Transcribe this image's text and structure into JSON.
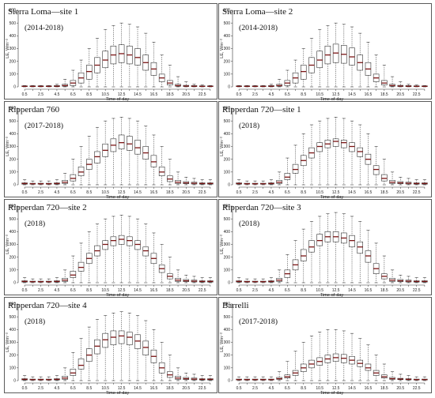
{
  "chart_data": [
    {
      "type": "boxplot",
      "title": "Sierra Loma—site 1",
      "subtitle": "(2014-2018)",
      "xlabel": "Time-of-day",
      "ylabel": "LE, Wm⁻²",
      "ylim": [
        0,
        600
      ],
      "y_ticks": [
        "0",
        "100",
        "200",
        "300",
        "400",
        "500",
        "600"
      ],
      "x_tick_labels": [
        "0.5",
        "2.5",
        "4.5",
        "6.5",
        "8.5",
        "10.5",
        "12.5",
        "14.5",
        "16.5",
        "18.5",
        "20.5",
        "22.5"
      ],
      "x": [
        0.5,
        1.5,
        2.5,
        3.5,
        4.5,
        5.5,
        6.5,
        7.5,
        8.5,
        9.5,
        10.5,
        11.5,
        12.5,
        13.5,
        14.5,
        15.5,
        16.5,
        17.5,
        18.5,
        19.5,
        20.5,
        21.5,
        22.5,
        23.5
      ],
      "min": [
        0,
        0,
        0,
        0,
        0,
        0,
        0,
        0,
        0,
        0,
        0,
        0,
        0,
        0,
        0,
        0,
        0,
        0,
        0,
        0,
        0,
        0,
        0,
        0
      ],
      "q1": [
        2,
        2,
        2,
        2,
        2,
        5,
        10,
        30,
        60,
        110,
        150,
        180,
        190,
        180,
        170,
        130,
        90,
        40,
        15,
        5,
        3,
        2,
        2,
        2
      ],
      "median": [
        4,
        4,
        4,
        4,
        5,
        10,
        30,
        70,
        120,
        170,
        210,
        250,
        260,
        250,
        230,
        190,
        140,
        70,
        30,
        10,
        6,
        5,
        4,
        4
      ],
      "q3": [
        8,
        8,
        8,
        8,
        10,
        20,
        50,
        110,
        170,
        230,
        280,
        320,
        330,
        320,
        300,
        250,
        190,
        100,
        50,
        20,
        12,
        10,
        8,
        8
      ],
      "max": [
        10,
        10,
        10,
        10,
        20,
        60,
        130,
        210,
        300,
        380,
        450,
        480,
        500,
        490,
        470,
        420,
        350,
        250,
        170,
        80,
        40,
        20,
        15,
        10
      ]
    },
    {
      "type": "boxplot",
      "title": "Sierra Loma—site 2",
      "subtitle": "(2014-2018)",
      "xlabel": "Time-of-day",
      "ylabel": "LE, Wm⁻²",
      "ylim": [
        0,
        600
      ],
      "y_ticks": [
        "0",
        "100",
        "200",
        "300",
        "400",
        "500",
        "600"
      ],
      "x_tick_labels": [
        "0.5",
        "2.5",
        "4.5",
        "6.5",
        "8.5",
        "10.5",
        "12.5",
        "14.5",
        "16.5",
        "18.5",
        "20.5",
        "22.5"
      ],
      "x": [
        0.5,
        1.5,
        2.5,
        3.5,
        4.5,
        5.5,
        6.5,
        7.5,
        8.5,
        9.5,
        10.5,
        11.5,
        12.5,
        13.5,
        14.5,
        15.5,
        16.5,
        17.5,
        18.5,
        19.5,
        20.5,
        21.5,
        22.5,
        23.5
      ],
      "min": [
        0,
        0,
        0,
        0,
        0,
        0,
        0,
        0,
        0,
        0,
        0,
        0,
        0,
        0,
        0,
        0,
        0,
        0,
        0,
        0,
        0,
        0,
        0,
        0
      ],
      "q1": [
        2,
        2,
        2,
        2,
        2,
        5,
        10,
        30,
        60,
        110,
        150,
        180,
        190,
        185,
        170,
        130,
        90,
        40,
        15,
        5,
        3,
        2,
        2,
        2
      ],
      "median": [
        4,
        4,
        4,
        4,
        5,
        10,
        30,
        70,
        120,
        170,
        210,
        250,
        265,
        255,
        235,
        190,
        140,
        70,
        30,
        10,
        6,
        5,
        4,
        4
      ],
      "q3": [
        8,
        8,
        8,
        8,
        10,
        20,
        50,
        110,
        170,
        230,
        280,
        320,
        335,
        325,
        305,
        250,
        190,
        100,
        50,
        20,
        12,
        10,
        8,
        8
      ],
      "max": [
        10,
        10,
        10,
        10,
        20,
        60,
        130,
        210,
        300,
        380,
        450,
        480,
        500,
        490,
        470,
        420,
        350,
        250,
        170,
        80,
        40,
        20,
        15,
        10
      ]
    },
    {
      "type": "boxplot",
      "title": "Ripperdan 760",
      "subtitle": "(2017-2018)",
      "xlabel": "Time-of-day",
      "ylabel": "LE, Wm⁻²",
      "ylim": [
        0,
        600
      ],
      "y_ticks": [
        "0",
        "100",
        "200",
        "300",
        "400",
        "500",
        "600"
      ],
      "x_tick_labels": [
        "0.5",
        "2.5",
        "4.5",
        "6.5",
        "8.5",
        "10.5",
        "12.5",
        "14.5",
        "16.5",
        "18.5",
        "20.5",
        "22.5"
      ],
      "x": [
        0.5,
        1.5,
        2.5,
        3.5,
        4.5,
        5.5,
        6.5,
        7.5,
        8.5,
        9.5,
        10.5,
        11.5,
        12.5,
        13.5,
        14.5,
        15.5,
        16.5,
        17.5,
        18.5,
        19.5,
        20.5,
        21.5,
        22.5,
        23.5
      ],
      "min": [
        0,
        0,
        0,
        0,
        0,
        0,
        0,
        0,
        0,
        0,
        0,
        0,
        0,
        0,
        0,
        0,
        0,
        0,
        0,
        0,
        0,
        0,
        0,
        0
      ],
      "q1": [
        5,
        5,
        5,
        5,
        5,
        10,
        30,
        70,
        120,
        170,
        220,
        260,
        280,
        270,
        240,
        200,
        140,
        70,
        25,
        10,
        8,
        6,
        5,
        5
      ],
      "median": [
        10,
        8,
        8,
        8,
        10,
        20,
        50,
        100,
        160,
        220,
        270,
        310,
        330,
        320,
        290,
        250,
        180,
        100,
        45,
        20,
        15,
        12,
        10,
        10
      ],
      "q3": [
        15,
        12,
        12,
        12,
        15,
        35,
        80,
        140,
        200,
        260,
        320,
        360,
        390,
        380,
        350,
        300,
        230,
        140,
        70,
        35,
        25,
        20,
        15,
        15
      ],
      "max": [
        40,
        30,
        30,
        30,
        40,
        90,
        200,
        300,
        380,
        450,
        500,
        520,
        530,
        520,
        500,
        460,
        390,
        300,
        200,
        100,
        60,
        50,
        40,
        40
      ]
    },
    {
      "type": "boxplot",
      "title": "Ripperdan 720—site 1",
      "subtitle": "(2018)",
      "xlabel": "Time-of-day",
      "ylabel": "LE, Wm⁻²",
      "ylim": [
        0,
        600
      ],
      "y_ticks": [
        "0",
        "100",
        "200",
        "300",
        "400",
        "500",
        "600"
      ],
      "x_tick_labels": [
        "0.5",
        "2.5",
        "4.5",
        "6.5",
        "8.5",
        "10.5",
        "12.5",
        "14.5",
        "16.5",
        "18.5",
        "20.5",
        "22.5"
      ],
      "x": [
        0.5,
        1.5,
        2.5,
        3.5,
        4.5,
        5.5,
        6.5,
        7.5,
        8.5,
        9.5,
        10.5,
        11.5,
        12.5,
        13.5,
        14.5,
        15.5,
        16.5,
        17.5,
        18.5,
        19.5,
        20.5,
        21.5,
        22.5,
        23.5
      ],
      "min": [
        0,
        0,
        0,
        0,
        0,
        0,
        0,
        0,
        0,
        0,
        0,
        0,
        0,
        0,
        0,
        0,
        0,
        0,
        0,
        0,
        0,
        0,
        0,
        0
      ],
      "q1": [
        5,
        5,
        5,
        5,
        5,
        10,
        40,
        90,
        150,
        210,
        260,
        290,
        300,
        290,
        260,
        220,
        160,
        80,
        30,
        10,
        8,
        6,
        5,
        5
      ],
      "median": [
        10,
        8,
        8,
        8,
        10,
        20,
        60,
        120,
        190,
        250,
        300,
        320,
        340,
        330,
        300,
        260,
        200,
        120,
        50,
        20,
        15,
        12,
        10,
        10
      ],
      "q3": [
        15,
        12,
        12,
        12,
        15,
        35,
        90,
        160,
        230,
        290,
        330,
        350,
        360,
        350,
        330,
        290,
        240,
        150,
        80,
        35,
        25,
        20,
        15,
        15
      ],
      "max": [
        40,
        30,
        30,
        30,
        40,
        100,
        210,
        310,
        400,
        470,
        500,
        520,
        530,
        520,
        500,
        470,
        400,
        300,
        200,
        100,
        60,
        50,
        40,
        40
      ]
    },
    {
      "type": "boxplot",
      "title": "Ripperdan 720—site 2",
      "subtitle": "(2018)",
      "xlabel": "Time-of-day",
      "ylabel": "LE, Wm⁻²",
      "ylim": [
        0,
        600
      ],
      "y_ticks": [
        "0",
        "100",
        "200",
        "300",
        "400",
        "500",
        "600"
      ],
      "x_tick_labels": [
        "0.5",
        "2.5",
        "4.5",
        "6.5",
        "8.5",
        "10.5",
        "12.5",
        "14.5",
        "16.5",
        "18.5",
        "20.5",
        "22.5"
      ],
      "x": [
        0.5,
        1.5,
        2.5,
        3.5,
        4.5,
        5.5,
        6.5,
        7.5,
        8.5,
        9.5,
        10.5,
        11.5,
        12.5,
        13.5,
        14.5,
        15.5,
        16.5,
        17.5,
        18.5,
        19.5,
        20.5,
        21.5,
        22.5,
        23.5
      ],
      "min": [
        0,
        0,
        0,
        0,
        0,
        0,
        0,
        0,
        0,
        0,
        0,
        0,
        0,
        0,
        0,
        0,
        0,
        0,
        0,
        0,
        0,
        0,
        0,
        0
      ],
      "q1": [
        5,
        5,
        5,
        5,
        5,
        10,
        40,
        90,
        150,
        210,
        260,
        290,
        300,
        290,
        260,
        210,
        150,
        80,
        30,
        10,
        8,
        6,
        5,
        5
      ],
      "median": [
        10,
        8,
        8,
        8,
        10,
        20,
        60,
        120,
        190,
        250,
        300,
        330,
        340,
        330,
        300,
        250,
        190,
        110,
        50,
        20,
        15,
        12,
        10,
        10
      ],
      "q3": [
        15,
        12,
        12,
        12,
        15,
        35,
        90,
        160,
        230,
        290,
        330,
        360,
        370,
        360,
        330,
        280,
        230,
        140,
        70,
        35,
        25,
        20,
        15,
        15
      ],
      "max": [
        40,
        30,
        30,
        30,
        40,
        100,
        210,
        310,
        400,
        460,
        500,
        520,
        530,
        520,
        500,
        460,
        390,
        300,
        200,
        100,
        60,
        50,
        40,
        40
      ]
    },
    {
      "type": "boxplot",
      "title": "Ripperdan 720—site 3",
      "subtitle": "(2018)",
      "xlabel": "Time-of-day",
      "ylabel": "LE, Wm⁻²",
      "ylim": [
        0,
        600
      ],
      "y_ticks": [
        "0",
        "100",
        "200",
        "300",
        "400",
        "500",
        "600"
      ],
      "x_tick_labels": [
        "0.5",
        "2.5",
        "4.5",
        "6.5",
        "8.5",
        "10.5",
        "12.5",
        "14.5",
        "16.5",
        "18.5",
        "20.5",
        "22.5"
      ],
      "x": [
        0.5,
        1.5,
        2.5,
        3.5,
        4.5,
        5.5,
        6.5,
        7.5,
        8.5,
        9.5,
        10.5,
        11.5,
        12.5,
        13.5,
        14.5,
        15.5,
        16.5,
        17.5,
        18.5,
        19.5,
        20.5,
        21.5,
        22.5,
        23.5
      ],
      "min": [
        0,
        0,
        0,
        0,
        0,
        0,
        0,
        0,
        0,
        0,
        0,
        0,
        0,
        0,
        0,
        0,
        0,
        0,
        0,
        0,
        0,
        0,
        0,
        0
      ],
      "q1": [
        5,
        5,
        5,
        5,
        5,
        10,
        40,
        100,
        170,
        240,
        290,
        320,
        320,
        310,
        280,
        230,
        160,
        70,
        30,
        10,
        8,
        6,
        5,
        5
      ],
      "median": [
        10,
        8,
        8,
        8,
        10,
        20,
        70,
        140,
        210,
        280,
        330,
        360,
        360,
        350,
        330,
        280,
        210,
        110,
        50,
        20,
        15,
        12,
        10,
        10
      ],
      "q3": [
        15,
        12,
        12,
        12,
        15,
        35,
        100,
        180,
        260,
        330,
        380,
        400,
        400,
        390,
        370,
        320,
        250,
        150,
        70,
        35,
        25,
        20,
        15,
        15
      ],
      "max": [
        40,
        30,
        30,
        30,
        40,
        100,
        220,
        330,
        420,
        480,
        520,
        540,
        550,
        540,
        520,
        480,
        410,
        310,
        210,
        100,
        60,
        50,
        40,
        40
      ]
    },
    {
      "type": "boxplot",
      "title": "Ripperdan 720—site 4",
      "subtitle": "(2018)",
      "xlabel": "Time-of-day",
      "ylabel": "LE, Wm⁻²",
      "ylim": [
        0,
        600
      ],
      "y_ticks": [
        "0",
        "100",
        "200",
        "300",
        "400",
        "500",
        "600"
      ],
      "x_tick_labels": [
        "0.5",
        "2.5",
        "4.5",
        "6.5",
        "8.5",
        "10.5",
        "12.5",
        "14.5",
        "16.5",
        "18.5",
        "20.5",
        "22.5"
      ],
      "x": [
        0.5,
        1.5,
        2.5,
        3.5,
        4.5,
        5.5,
        6.5,
        7.5,
        8.5,
        9.5,
        10.5,
        11.5,
        12.5,
        13.5,
        14.5,
        15.5,
        16.5,
        17.5,
        18.5,
        19.5,
        20.5,
        21.5,
        22.5,
        23.5
      ],
      "min": [
        0,
        0,
        0,
        0,
        0,
        0,
        0,
        0,
        0,
        0,
        0,
        0,
        0,
        0,
        0,
        0,
        0,
        0,
        0,
        0,
        0,
        0,
        0,
        0
      ],
      "q1": [
        5,
        5,
        5,
        5,
        5,
        10,
        40,
        90,
        150,
        210,
        260,
        280,
        290,
        280,
        250,
        200,
        140,
        60,
        25,
        10,
        8,
        6,
        5,
        5
      ],
      "median": [
        10,
        8,
        8,
        8,
        10,
        20,
        60,
        120,
        200,
        270,
        320,
        340,
        350,
        340,
        310,
        260,
        190,
        100,
        45,
        20,
        15,
        12,
        10,
        10
      ],
      "q3": [
        15,
        12,
        12,
        12,
        15,
        35,
        90,
        170,
        250,
        320,
        370,
        390,
        390,
        380,
        360,
        310,
        240,
        140,
        70,
        35,
        25,
        20,
        15,
        15
      ],
      "max": [
        40,
        30,
        30,
        30,
        40,
        100,
        220,
        330,
        420,
        480,
        510,
        530,
        540,
        530,
        510,
        470,
        400,
        300,
        200,
        100,
        60,
        50,
        40,
        40
      ]
    },
    {
      "type": "boxplot",
      "title": "Barrelli",
      "subtitle": "(2017-2018)",
      "xlabel": "Time-of-day",
      "ylabel": "LE, Wm⁻²",
      "ylim": [
        0,
        600
      ],
      "y_ticks": [
        "0",
        "100",
        "200",
        "300",
        "400",
        "500",
        "600"
      ],
      "x_tick_labels": [
        "0.5",
        "2.5",
        "4.5",
        "6.5",
        "8.5",
        "10.5",
        "12.5",
        "14.5",
        "16.5",
        "18.5",
        "20.5",
        "22.5"
      ],
      "x": [
        0.5,
        1.5,
        2.5,
        3.5,
        4.5,
        5.5,
        6.5,
        7.5,
        8.5,
        9.5,
        10.5,
        11.5,
        12.5,
        13.5,
        14.5,
        15.5,
        16.5,
        17.5,
        18.5,
        19.5,
        20.5,
        21.5,
        22.5,
        23.5
      ],
      "min": [
        0,
        0,
        0,
        0,
        0,
        0,
        0,
        0,
        0,
        0,
        0,
        0,
        0,
        0,
        0,
        0,
        0,
        0,
        0,
        0,
        0,
        0,
        0,
        0
      ],
      "q1": [
        5,
        5,
        5,
        5,
        5,
        10,
        20,
        40,
        70,
        100,
        120,
        140,
        150,
        140,
        130,
        110,
        80,
        40,
        20,
        10,
        8,
        6,
        5,
        5
      ],
      "median": [
        8,
        8,
        8,
        8,
        8,
        15,
        30,
        60,
        100,
        130,
        150,
        170,
        180,
        175,
        160,
        135,
        100,
        60,
        30,
        15,
        12,
        10,
        8,
        8
      ],
      "q3": [
        12,
        12,
        12,
        12,
        12,
        25,
        45,
        80,
        130,
        160,
        180,
        200,
        210,
        205,
        190,
        160,
        130,
        80,
        45,
        25,
        18,
        15,
        12,
        12
      ],
      "max": [
        30,
        30,
        30,
        30,
        30,
        70,
        150,
        230,
        300,
        350,
        380,
        400,
        400,
        390,
        370,
        330,
        280,
        200,
        130,
        70,
        50,
        40,
        30,
        30
      ]
    }
  ]
}
